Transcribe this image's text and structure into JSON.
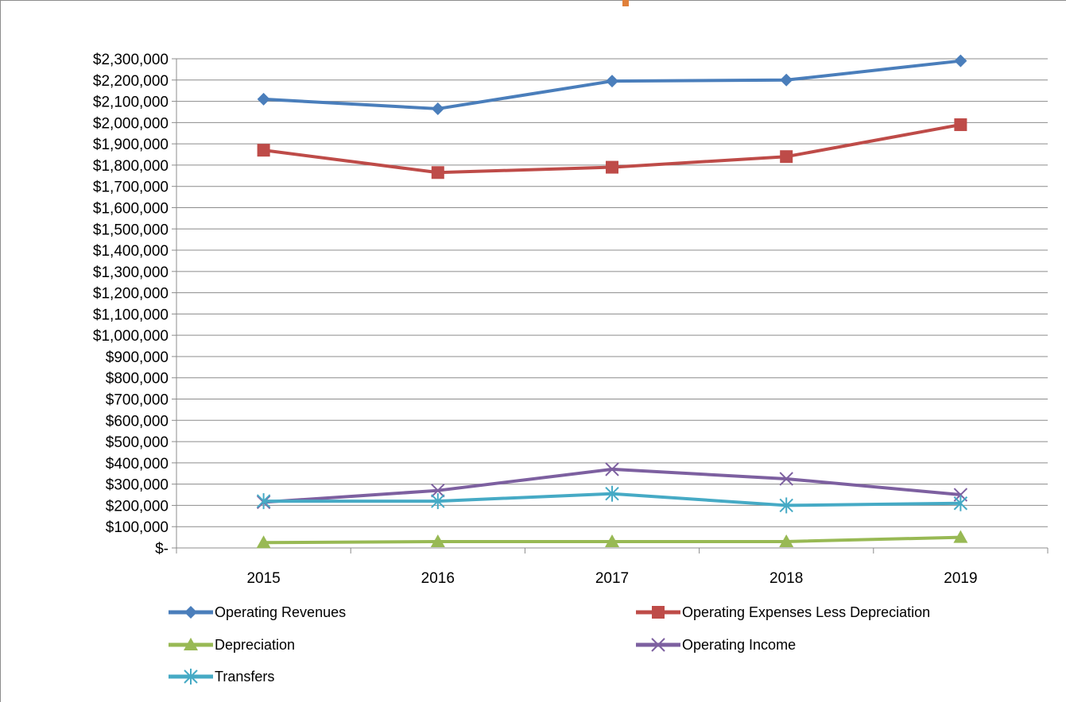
{
  "chart_data": {
    "type": "line",
    "title": "",
    "xlabel": "",
    "ylabel": "",
    "categories": [
      "2015",
      "2016",
      "2017",
      "2018",
      "2019"
    ],
    "ylim": [
      0,
      2300000
    ],
    "ytick_step": 100000,
    "ytick_labels": [
      "$-",
      "$100,000",
      "$200,000",
      "$300,000",
      "$400,000",
      "$500,000",
      "$600,000",
      "$700,000",
      "$800,000",
      "$900,000",
      "$1,000,000",
      "$1,100,000",
      "$1,200,000",
      "$1,300,000",
      "$1,400,000",
      "$1,500,000",
      "$1,600,000",
      "$1,700,000",
      "$1,800,000",
      "$1,900,000",
      "$2,000,000",
      "$2,100,000",
      "$2,200,000",
      "$2,300,000"
    ],
    "grid": true,
    "legend_position": "bottom",
    "series": [
      {
        "name": "Operating Revenues",
        "values": [
          2110000,
          2065000,
          2195000,
          2200000,
          2290000
        ],
        "color": "#4a7ebb",
        "marker": "diamond"
      },
      {
        "name": "Operating Expenses Less Depreciation",
        "values": [
          1870000,
          1765000,
          1790000,
          1840000,
          1990000
        ],
        "color": "#be4b48",
        "marker": "square"
      },
      {
        "name": "Depreciation",
        "values": [
          25000,
          30000,
          30000,
          30000,
          50000
        ],
        "color": "#98b954",
        "marker": "triangle"
      },
      {
        "name": "Operating Income",
        "values": [
          215000,
          270000,
          370000,
          325000,
          250000
        ],
        "color": "#7d60a0",
        "marker": "x"
      },
      {
        "name": "Transfers",
        "values": [
          220000,
          220000,
          255000,
          200000,
          210000
        ],
        "color": "#46aac5",
        "marker": "star"
      }
    ]
  }
}
